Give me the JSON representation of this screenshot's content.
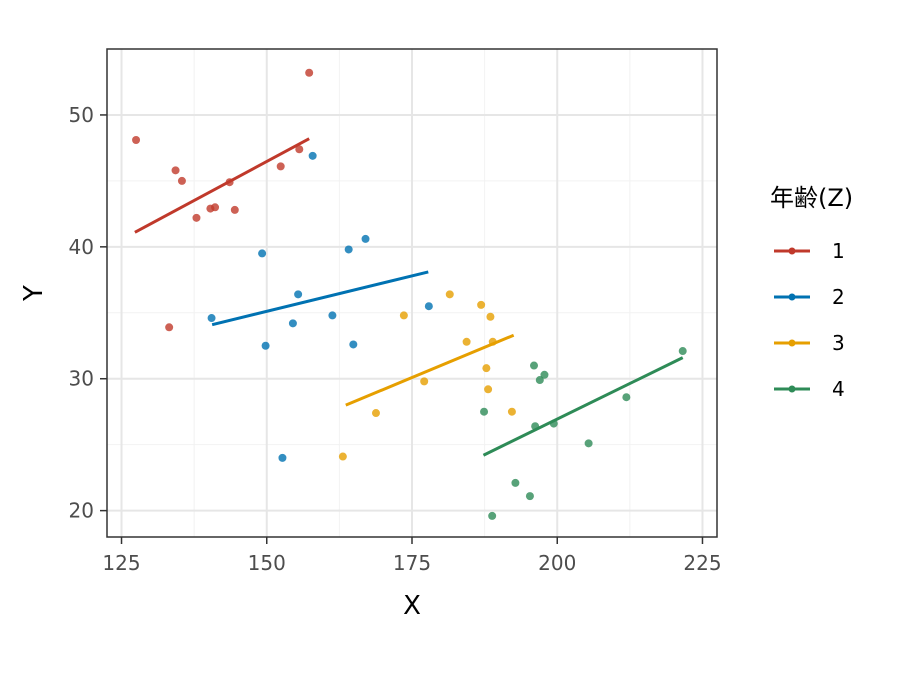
{
  "chart_data": {
    "type": "scatter",
    "title": "",
    "xlabel": "X",
    "ylabel": "Y",
    "xlim": [
      122.5,
      227.5
    ],
    "ylim": [
      18,
      55
    ],
    "xticks": [
      125,
      150,
      175,
      200,
      225
    ],
    "yticks": [
      20,
      30,
      40,
      50
    ],
    "grid": true,
    "legend": {
      "title": "年齢(Z)",
      "placement": "right"
    },
    "series": [
      {
        "name": "1",
        "color": "#C0392B",
        "points": [
          [
            127.5,
            48.1
          ],
          [
            133.2,
            33.9
          ],
          [
            134.3,
            45.8
          ],
          [
            135.4,
            45.0
          ],
          [
            137.9,
            42.2
          ],
          [
            140.3,
            42.9
          ],
          [
            141.1,
            43.0
          ],
          [
            143.6,
            44.9
          ],
          [
            144.5,
            42.8
          ],
          [
            152.4,
            46.1
          ],
          [
            155.6,
            47.4
          ],
          [
            157.3,
            53.2
          ]
        ],
        "fit": [
          [
            127.3,
            41.1
          ],
          [
            157.3,
            48.2
          ]
        ]
      },
      {
        "name": "2",
        "color": "#0072B2",
        "points": [
          [
            140.5,
            34.6
          ],
          [
            149.2,
            39.5
          ],
          [
            149.8,
            32.5
          ],
          [
            152.7,
            24.0
          ],
          [
            154.5,
            34.2
          ],
          [
            155.4,
            36.4
          ],
          [
            157.9,
            46.9
          ],
          [
            161.3,
            34.8
          ],
          [
            164.1,
            39.8
          ],
          [
            164.9,
            32.6
          ],
          [
            167.0,
            40.6
          ],
          [
            177.9,
            35.5
          ]
        ],
        "fit": [
          [
            140.6,
            34.1
          ],
          [
            177.8,
            38.1
          ]
        ]
      },
      {
        "name": "3",
        "color": "#E69F00",
        "points": [
          [
            163.1,
            24.1
          ],
          [
            168.8,
            27.4
          ],
          [
            173.6,
            34.8
          ],
          [
            177.1,
            29.8
          ],
          [
            181.5,
            36.4
          ],
          [
            184.4,
            32.8
          ],
          [
            186.9,
            35.6
          ],
          [
            187.8,
            30.8
          ],
          [
            188.1,
            29.2
          ],
          [
            188.5,
            34.7
          ],
          [
            188.9,
            32.8
          ],
          [
            192.2,
            27.5
          ]
        ],
        "fit": [
          [
            163.6,
            28.0
          ],
          [
            192.5,
            33.3
          ]
        ]
      },
      {
        "name": "4",
        "color": "#2E8B57",
        "points": [
          [
            187.4,
            27.5
          ],
          [
            188.8,
            19.6
          ],
          [
            192.8,
            22.1
          ],
          [
            195.3,
            21.1
          ],
          [
            196.2,
            26.4
          ],
          [
            196.0,
            31.0
          ],
          [
            197.0,
            29.9
          ],
          [
            197.8,
            30.3
          ],
          [
            199.4,
            26.6
          ],
          [
            205.4,
            25.1
          ],
          [
            211.9,
            28.6
          ],
          [
            221.6,
            32.1
          ]
        ],
        "fit": [
          [
            187.3,
            24.2
          ],
          [
            221.6,
            31.6
          ]
        ]
      }
    ]
  }
}
